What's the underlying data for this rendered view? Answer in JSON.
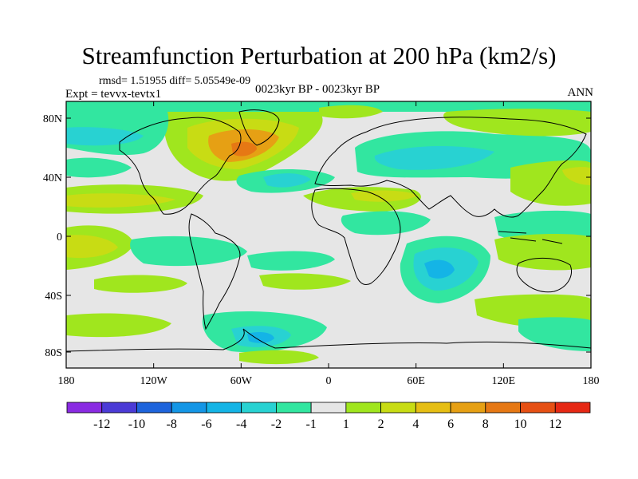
{
  "title": "Streamfunction Perturbation at 200 hPa (km2/s)",
  "stats": "rmsd= 1.51955 diff= 5.05549e-09",
  "experiment": "Expt = tevvx-tevtx1",
  "period": "0023kyr BP - 0023kyr BP",
  "season": "ANN",
  "lat_ticks": [
    "80N",
    "40N",
    "0",
    "40S",
    "80S"
  ],
  "lon_ticks": [
    "180",
    "120W",
    "60W",
    "0",
    "60E",
    "120E",
    "180"
  ],
  "colorbar": {
    "labels": [
      "-12",
      "-10",
      "-8",
      "-6",
      "-4",
      "-2",
      "-1",
      "1",
      "2",
      "4",
      "6",
      "8",
      "10",
      "12"
    ],
    "colors": [
      "#8a2be2",
      "#4b3bd6",
      "#1e64dc",
      "#1496e6",
      "#14b4e6",
      "#28d2d2",
      "#32e6a0",
      "#e6e6e6",
      "#a0e61e",
      "#c8dc14",
      "#e6be14",
      "#e6a014",
      "#e67814",
      "#e65014",
      "#e62814"
    ]
  }
}
